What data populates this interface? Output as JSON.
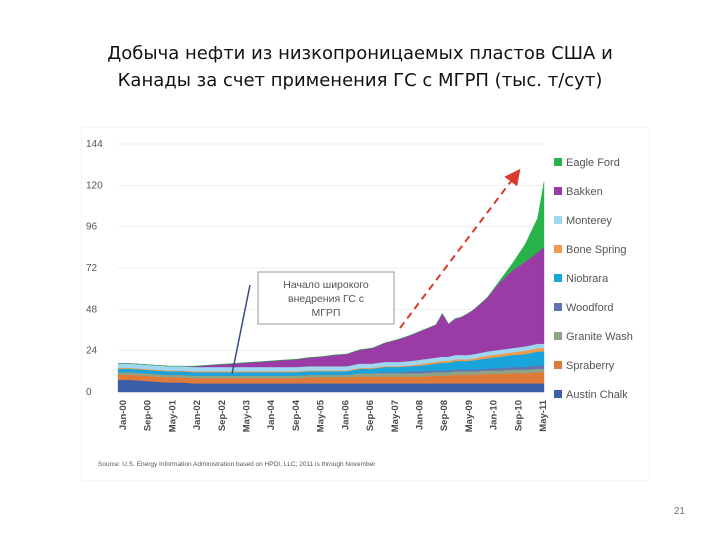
{
  "slide": {
    "title_line1": "Добыча нефти из низкопроницаемых пластов США и",
    "title_line2": "Канады за счет применения ГС с МГРП (тыс. т/сут)",
    "page_number": "21"
  },
  "chart_data": {
    "type": "area",
    "stacked": true,
    "title": "",
    "xlabel": "",
    "ylabel": "",
    "ylim": [
      0,
      144
    ],
    "yticks": [
      0,
      24,
      48,
      72,
      96,
      120,
      144
    ],
    "x": [
      0,
      4,
      8,
      12,
      16,
      20,
      24,
      28,
      32,
      36,
      40,
      44,
      48,
      52,
      56,
      60,
      64,
      68,
      72,
      76,
      80,
      84,
      88,
      92,
      96,
      100,
      102,
      104,
      106,
      108,
      110,
      112,
      116,
      120,
      124,
      128,
      132,
      134
    ],
    "xtick_labels": [
      "Jan-00",
      "Sep-00",
      "May-01",
      "Jan-02",
      "Sep-02",
      "May-03",
      "Jan-04",
      "Sep-04",
      "May-05",
      "Jan-06",
      "Sep-06",
      "May-07",
      "Jan-08",
      "Sep-08",
      "May-09",
      "Jan-10",
      "Sep-10",
      "May-11"
    ],
    "legend_position": "right",
    "grid": false,
    "series": [
      {
        "name": "Austin Chalk",
        "color": "#3a5fa8",
        "values": [
          7,
          7,
          6.5,
          6,
          5.5,
          5.5,
          5,
          5,
          5,
          5,
          5,
          5,
          5,
          5,
          5,
          5,
          5,
          5,
          5,
          5,
          5,
          5,
          5,
          5,
          5,
          5,
          5,
          5,
          5,
          5,
          5,
          5,
          5,
          5,
          5,
          5,
          5,
          5
        ]
      },
      {
        "name": "Spraberry",
        "color": "#e07a3a",
        "values": [
          3,
          3,
          3,
          3,
          3,
          3,
          3,
          3,
          3,
          3,
          3,
          3,
          3,
          3,
          3,
          3.5,
          3.5,
          3.5,
          3.5,
          4,
          4,
          4,
          4,
          4,
          4,
          4.5,
          4.5,
          4.5,
          5,
          5,
          5,
          5,
          5.5,
          5.5,
          6,
          6,
          6.5,
          6.5
        ]
      },
      {
        "name": "Granite Wash",
        "color": "#8ea384",
        "values": [
          1.5,
          1.5,
          1.5,
          1.5,
          1.5,
          1.5,
          1.5,
          1.5,
          1.5,
          1.5,
          1.5,
          1.5,
          1.5,
          1.5,
          1.5,
          1.5,
          1.5,
          1.5,
          1.5,
          2,
          2,
          2,
          2,
          2,
          2,
          2,
          2,
          2,
          2,
          2,
          2,
          2,
          2,
          2,
          2,
          2,
          2,
          2
        ]
      },
      {
        "name": "Woodford",
        "color": "#6274b0",
        "values": [
          0,
          0,
          0,
          0,
          0,
          0,
          0,
          0,
          0,
          0,
          0,
          0,
          0,
          0,
          0,
          0,
          0,
          0,
          0,
          0,
          0,
          0.5,
          0.5,
          1,
          1,
          1,
          1,
          1,
          1,
          1,
          1,
          1,
          1,
          1.5,
          1.5,
          1.5,
          2,
          2
        ]
      },
      {
        "name": "Niobrara",
        "color": "#1aa4dc",
        "values": [
          2,
          2,
          2,
          2,
          2,
          2,
          2,
          2,
          2,
          2,
          2,
          2,
          2,
          2,
          2,
          2,
          2,
          2,
          2,
          2.5,
          2.5,
          3,
          3,
          3,
          3.5,
          4,
          4.5,
          4.5,
          5,
          5,
          5,
          5.5,
          6,
          6.5,
          7,
          7.5,
          8,
          8
        ]
      },
      {
        "name": "Bone Spring",
        "color": "#f29a4a",
        "values": [
          0.5,
          0.5,
          0.5,
          0.5,
          0.5,
          0.5,
          0.5,
          0.5,
          0.5,
          0.5,
          0.5,
          0.5,
          0.5,
          0.5,
          0.5,
          0.5,
          0.5,
          0.5,
          0.5,
          0.5,
          0.5,
          0.5,
          0.5,
          0.5,
          1,
          1,
          1,
          1,
          1,
          1,
          1,
          1,
          1.5,
          1.5,
          1.5,
          2,
          2,
          2
        ]
      },
      {
        "name": "Monterey",
        "color": "#9fd6f0",
        "values": [
          2.5,
          2.5,
          2.5,
          2.5,
          2.5,
          2.5,
          2.5,
          2.5,
          2.5,
          2.5,
          2.5,
          2.5,
          2.5,
          2.5,
          2.5,
          2.5,
          2.5,
          2.5,
          2.5,
          2.5,
          2.5,
          2.5,
          2.5,
          2.5,
          2.5,
          2.5,
          2.5,
          2.5,
          2.5,
          2.5,
          2.5,
          2.5,
          2.5,
          2.5,
          2.5,
          2.5,
          2.5,
          2.5
        ]
      },
      {
        "name": "Bakken",
        "color": "#9a3ba6",
        "values": [
          0,
          0,
          0,
          0,
          0,
          0,
          0.5,
          1,
          1.5,
          2,
          2.5,
          3,
          3.5,
          4,
          4.5,
          5,
          5.5,
          6.5,
          7,
          8,
          9,
          11,
          13,
          15,
          17,
          19,
          25,
          19,
          21,
          22,
          24,
          26,
          31,
          39,
          45,
          49,
          53,
          56
        ]
      },
      {
        "name": "Eagle Ford",
        "color": "#27b34a",
        "values": [
          0,
          0,
          0,
          0,
          0,
          0,
          0,
          0,
          0,
          0,
          0,
          0,
          0,
          0,
          0,
          0,
          0,
          0,
          0,
          0,
          0,
          0,
          0,
          0,
          0,
          0,
          0,
          0,
          0,
          0,
          0,
          0,
          0,
          1,
          4,
          10,
          20,
          38
        ]
      }
    ],
    "annotation": {
      "text_line1": "Начало широкого",
      "text_line2": "внедрения ГС с",
      "text_line3": "МГРП"
    },
    "source": "Source: U.S. Energy Information Administration based on HPDI, LLC; 2011 is through November"
  }
}
